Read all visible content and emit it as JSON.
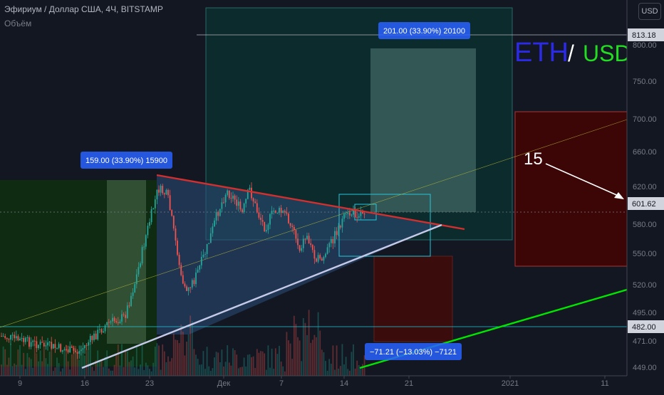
{
  "header": {
    "symbol": "Эфириум / Доллар США, 4Ч, BITSTAMP",
    "volume_label": "Объём",
    "currency_button": "USD"
  },
  "colors": {
    "background": "#131722",
    "candle_up": "#26a69a",
    "candle_down": "#ef5350",
    "resistance_line": "#d32f2f",
    "support_line": "#c5cae9",
    "trend_line": "#00e600",
    "eth_text": "#2a2ae8",
    "usd_text": "#22dd22"
  },
  "chart_data": {
    "type": "candlestick",
    "y_axis_ticks": [
      "449.00",
      "471.00",
      "482.00",
      "495.00",
      "520.00",
      "550.00",
      "580.00",
      "601.62",
      "620.00",
      "660.00",
      "700.00",
      "750.00",
      "800.00",
      "813.18"
    ],
    "x_axis_ticks": [
      "9",
      "16",
      "23",
      "Дек",
      "7",
      "14",
      "21",
      "2021",
      "11"
    ],
    "price_labels": [
      {
        "value": "813.18",
        "style": "light"
      },
      {
        "value": "601.62",
        "style": "light"
      },
      {
        "value": "482.00",
        "style": "light"
      }
    ],
    "annotations": [
      {
        "name": "measure-long",
        "text": "159.00 (33.90%) 15900"
      },
      {
        "name": "measure-target",
        "text": "201.00 (33.90%) 20100"
      },
      {
        "name": "measure-drop",
        "text": "−71.21 (−13.03%) −7121"
      },
      {
        "name": "count-label",
        "text": "15"
      }
    ],
    "title_text": {
      "eth": "ETH",
      "slash": "/",
      "usd": "USD"
    },
    "lines": [
      {
        "name": "resistance-line",
        "from": [
          "Нов 25",
          627
        ],
        "to": [
          "Дек 22",
          580
        ]
      },
      {
        "name": "support-line",
        "from": [
          "Нов 16",
          449
        ],
        "to": [
          "Дек 21",
          580
        ]
      },
      {
        "name": "uptrend-line",
        "from": [
          "Дек 14",
          449
        ],
        "to": [
          "Янв 13",
          520
        ]
      }
    ]
  }
}
